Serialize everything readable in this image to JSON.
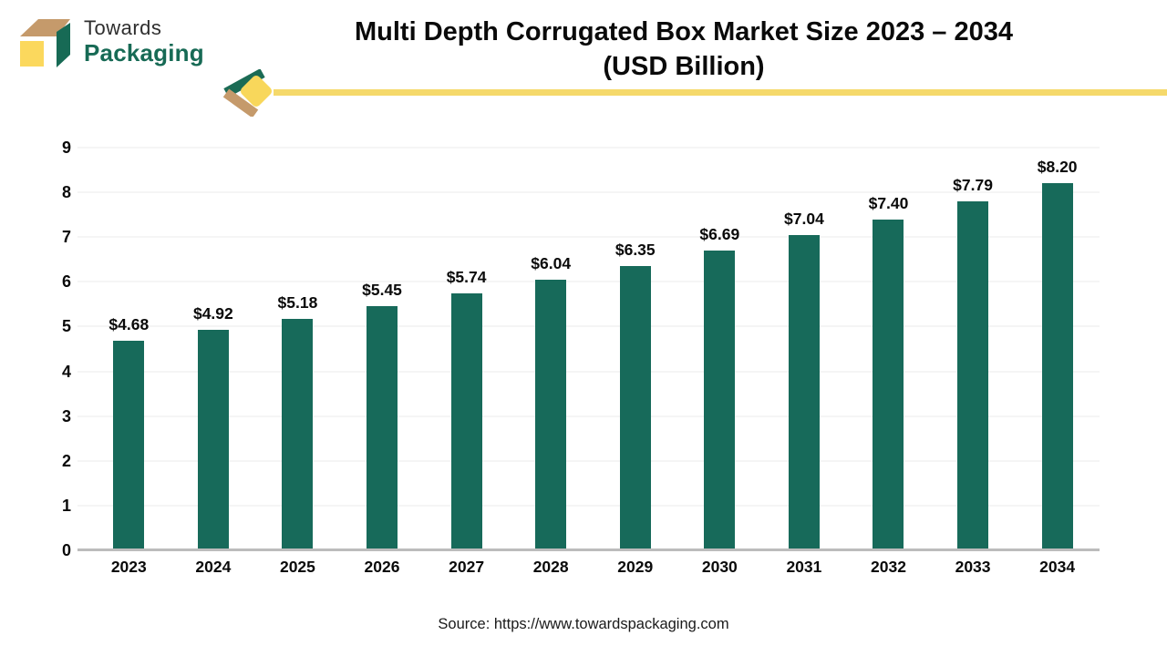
{
  "logo": {
    "line1": "Towards",
    "line2": "Packaging",
    "icon": "logo-box-icon",
    "colors": {
      "green": "#176A55",
      "tan": "#C59A6B",
      "yellow": "#FBD85D"
    }
  },
  "title": {
    "line1": "Multi Depth Corrugated Box Market Size 2023 – 2034",
    "line2": "(USD Billion)"
  },
  "ribbon": {
    "icons": [
      "chevron-left-icon",
      "diamond-icon"
    ],
    "line_color": "#F5D96B",
    "diamond_color": "#F8D75B",
    "chevron_green": "#1B6B55",
    "chevron_tan": "#C59A6B"
  },
  "source": "Source: https://www.towardspackaging.com",
  "chart_data": {
    "type": "bar",
    "title": "Multi Depth Corrugated Box Market Size 2023 – 2034 (USD Billion)",
    "categories": [
      "2023",
      "2024",
      "2025",
      "2026",
      "2027",
      "2028",
      "2029",
      "2030",
      "2031",
      "2032",
      "2033",
      "2034"
    ],
    "values": [
      4.68,
      4.92,
      5.18,
      5.45,
      5.74,
      6.04,
      6.35,
      6.69,
      7.04,
      7.4,
      7.79,
      8.2
    ],
    "labels": [
      "$4.68",
      "$4.92",
      "$5.18",
      "$5.45",
      "$5.74",
      "$6.04",
      "$6.35",
      "$6.69",
      "$7.04",
      "$7.40",
      "$7.79",
      "$8.20"
    ],
    "xlabel": "",
    "ylabel": "",
    "ylim": [
      0,
      9
    ],
    "yticks": [
      0,
      1,
      2,
      3,
      4,
      5,
      6,
      7,
      8,
      9
    ],
    "grid": true,
    "legend": "none",
    "bar_color": "#176A5A",
    "value_prefix": "$"
  }
}
